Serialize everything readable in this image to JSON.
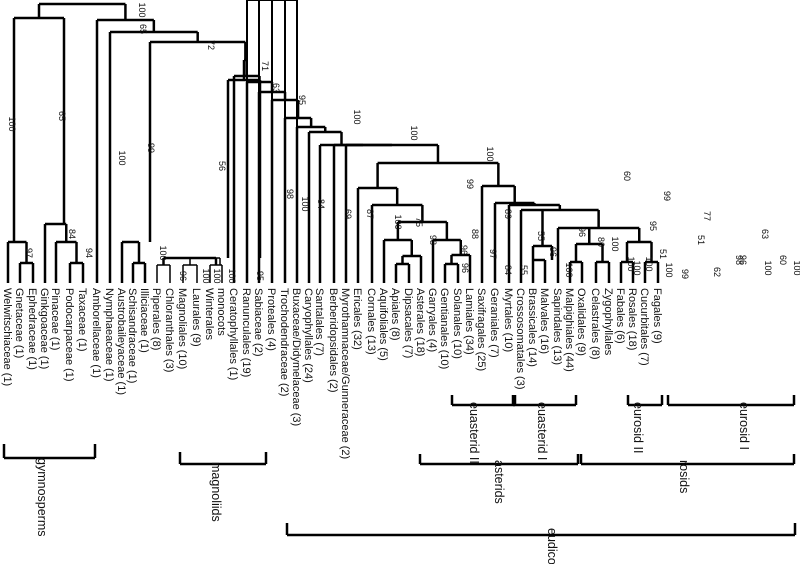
{
  "diagram": {
    "type": "phylogenetic-tree",
    "colors": {
      "line": "#000000",
      "text": "#111111",
      "background": "#ffffff"
    },
    "taxa": [
      "Welwitschiaceae (1)",
      "Gnetaceae (1)",
      "Ephedraceae (1)",
      "Ginkgoaceae (1)",
      "Pinaceae (1)",
      "Podocarpaceae (1)",
      "Taxaceae (1)",
      "Amborellaceae (1)",
      "Nymphaeaceae (1)",
      "Austrobaileyaceae (1)",
      "Schisandraceae (1)",
      "Illiciaceae (1)",
      "Piperales (8)",
      "Chloranthales (3)",
      "Magnoliales (10)",
      "Laurales (9)",
      "Winterales",
      "monocots",
      "Ceratophyllales (1)",
      "Ranunculales (19)",
      "Sabiaceae (2)",
      "Proteales (4)",
      "Trochodendraceae (2)",
      "Buxaceae/Didymelaceae (3)",
      "Caryophyllales (24)",
      "Santalales (7)",
      "Berberidopsidales (2)",
      "Myrothamnaceae/Gunneraceae (2)",
      "Ericales (32)",
      "Cornales (13)",
      "Aquifoliales (5)",
      "Apiales (8)",
      "Dipsacales (7)",
      "Asterales (18)",
      "Garryales (4)",
      "Gentianales (10)",
      "Solanales (10)",
      "Lamiales (34)",
      "Saxifragales (25)",
      "Geraniales (7)",
      "Myrtales (10)",
      "Crossosomatales (3)",
      "Brassicales (14)",
      "Malvales (16)",
      "Sapindales (13)",
      "Malpighiales (44)",
      "Oxalidales (9)",
      "Celastrales (8)",
      "Zygophyllales",
      "Fabales (6)",
      "Rosales (18)",
      "Cucurbitales (7)",
      "Fagales (9)"
    ],
    "support": {
      "gnetales": "97",
      "gnetales_ginkgo": "65",
      "gnetales_conifers": "100",
      "conifers": "84",
      "podocarpaceae_taxaceae": "94",
      "angiosperms": "100",
      "nymphaeaceae_up": "100",
      "austrobaileyales_up": "65",
      "austrobaileyales": "99",
      "schisandraceae_illiciaceae": "100",
      "core_angiosperms": "72",
      "magnoliids_monocots": "71",
      "magnoliids": "56",
      "piperales_chloranthales": "96",
      "magnoliales_laurales": "100",
      "laurales_winterales": "100",
      "winterales_monocots": "95",
      "piperales_chlor_inner": "100",
      "eudicots_plus": "63",
      "ceratophyllales_up": "98",
      "eudicots": "95",
      "sabiaceae_up": "100",
      "proteales_up": "84",
      "trochodendraceae_up": "100",
      "core_eudicots": "69",
      "buxaceae_up": "100",
      "core_inner": "87",
      "caryophyllales_up": "100",
      "santalales_up": "75",
      "asterids_rosids": "100",
      "asterids": "99",
      "ericales_up": "98",
      "cornales_up": "96",
      "euasterids": "89",
      "euasterid_II": "88",
      "apiales_up": "97",
      "dipsacales_asterales": "84",
      "aquifoliales_up": "96",
      "euasterid_I": "55",
      "garryales_up": "96",
      "gentianales_up": "55",
      "solanales_lamiales": "100",
      "rosids_plus": "60",
      "saxifragales_up": "96",
      "rosids": "99",
      "rosids_inner": "80",
      "geraniales_up": "100",
      "eurosids": "95",
      "eurosid_II": "51",
      "malvales_up": "100",
      "eurosid_I": "77",
      "malpighiales_up": "51",
      "oxalidales_up": "99",
      "fabales_up": "62",
      "celastrales_up": "63",
      "zygophyllales_up": "96",
      "fabales_rosales": "98",
      "cucurbitales_fagales": "60",
      "cucurbitales_inner": "100",
      "rosales_up": "100",
      "myrtales_up": "100",
      "brassicales_up": "100",
      "crossosomatales_up": "100"
    },
    "groups": {
      "gymnosperms": "gymnosperms",
      "magnoliids": "magnoliids",
      "euasterid_II": "euasterid II",
      "euasterid_I": "euasterid I",
      "asterids": "asterids",
      "eurosid_II": "eurosid II",
      "eurosid_I": "eurosid I",
      "rosids": "rosids",
      "eudicots": "eudicots"
    }
  }
}
